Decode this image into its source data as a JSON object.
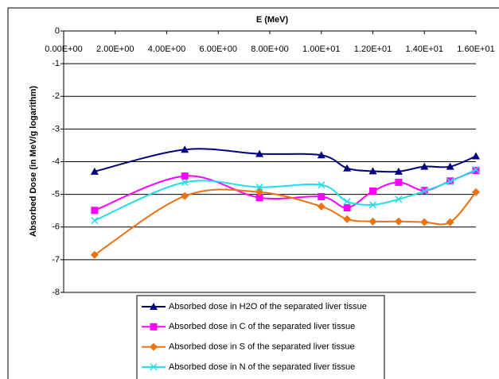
{
  "chart_data": {
    "type": "line",
    "x_label": "E (MeV)",
    "y_label": "Absorbed Dose (in MeV/g logarithm)",
    "xlim": [
      0,
      16
    ],
    "xticks": [
      {
        "value": 0,
        "label": "0.00E+00"
      },
      {
        "value": 2,
        "label": "2.00E+00"
      },
      {
        "value": 4,
        "label": "4.00E+00"
      },
      {
        "value": 6,
        "label": "6.00E+00"
      },
      {
        "value": 8,
        "label": "8.00E+00"
      },
      {
        "value": 10,
        "label": "1.00E+01"
      },
      {
        "value": 12,
        "label": "1.20E+01"
      },
      {
        "value": 14,
        "label": "1.40E+01"
      },
      {
        "value": 16,
        "label": "1.60E+01"
      }
    ],
    "ylim": [
      -8,
      0
    ],
    "yticks": [
      0,
      -1,
      -2,
      -3,
      -4,
      -5,
      -6,
      -7,
      -8
    ],
    "grid": true,
    "smooth": true,
    "x": [
      1.2,
      4.7,
      7.6,
      10,
      11,
      12,
      13,
      14,
      15,
      16
    ],
    "series": [
      {
        "name": "Absorbed dose in H2O of the separated liver tissue",
        "color": "#000080",
        "marker": "triangle",
        "values": [
          -4.3,
          -3.63,
          -3.76,
          -3.8,
          -4.2,
          -4.29,
          -4.3,
          -4.15,
          -4.15,
          -3.83
        ]
      },
      {
        "name": "Absorbed dose in C of the separated liver tissue",
        "color": "#ff00ff",
        "marker": "square",
        "values": [
          -5.49,
          -4.44,
          -5.1,
          -5.07,
          -5.41,
          -4.9,
          -4.63,
          -4.88,
          -4.59,
          -4.27
        ]
      },
      {
        "name": "Absorbed dose in S of the separated liver tissue",
        "color": "#f07010",
        "marker": "diamond",
        "values": [
          -6.85,
          -5.05,
          -4.93,
          -5.37,
          -5.76,
          -5.83,
          -5.83,
          -5.85,
          -5.85,
          -4.93
        ]
      },
      {
        "name": "Absorbed dose in N of the separated liver tissue",
        "color": "#22dde8",
        "marker": "x",
        "values": [
          -5.8,
          -4.63,
          -4.78,
          -4.71,
          -5.22,
          -5.32,
          -5.15,
          -4.9,
          -4.61,
          -4.24
        ]
      }
    ]
  }
}
